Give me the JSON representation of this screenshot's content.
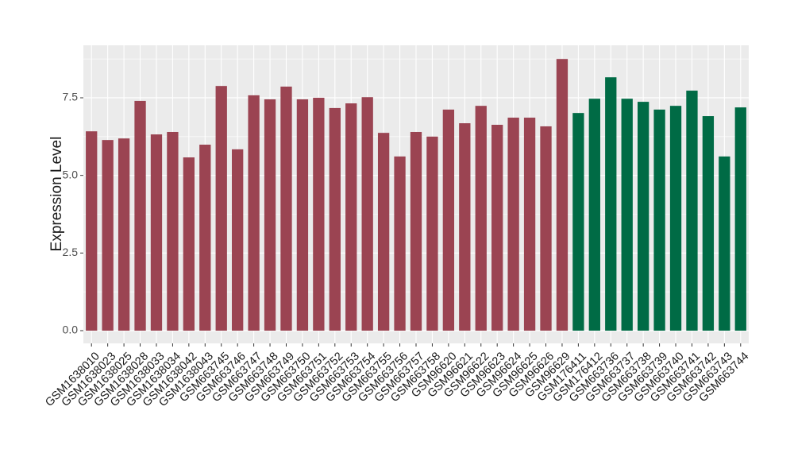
{
  "chart_data": {
    "type": "bar",
    "y_label": "Expression Level",
    "categories": [
      "GSM1638010",
      "GSM1638023",
      "GSM1638025",
      "GSM1638028",
      "GSM1638033",
      "GSM1638034",
      "GSM1638042",
      "GSM1638043",
      "GSM663745",
      "GSM663746",
      "GSM663747",
      "GSM663748",
      "GSM663749",
      "GSM663750",
      "GSM663751",
      "GSM663752",
      "GSM663753",
      "GSM663754",
      "GSM663755",
      "GSM663756",
      "GSM663757",
      "GSM663758",
      "GSM96620",
      "GSM96621",
      "GSM96622",
      "GSM96623",
      "GSM96624",
      "GSM96625",
      "GSM96626",
      "GSM96629",
      "GSM176411",
      "GSM176412",
      "GSM663736",
      "GSM663737",
      "GSM663738",
      "GSM663739",
      "GSM663740",
      "GSM663741",
      "GSM663742",
      "GSM663743",
      "GSM663744"
    ],
    "values": [
      6.42,
      6.14,
      6.19,
      7.4,
      6.32,
      6.4,
      5.58,
      5.99,
      7.88,
      5.84,
      7.58,
      7.45,
      7.86,
      7.45,
      7.5,
      7.17,
      7.32,
      7.52,
      6.37,
      5.61,
      6.4,
      6.25,
      7.12,
      6.68,
      7.24,
      6.63,
      6.86,
      6.86,
      6.58,
      8.75,
      7.01,
      7.47,
      8.16,
      7.47,
      7.37,
      7.12,
      7.24,
      7.73,
      6.91,
      5.61,
      7.19
    ],
    "colors": [
      "#9b4452",
      "#9b4452",
      "#9b4452",
      "#9b4452",
      "#9b4452",
      "#9b4452",
      "#9b4452",
      "#9b4452",
      "#9b4452",
      "#9b4452",
      "#9b4452",
      "#9b4452",
      "#9b4452",
      "#9b4452",
      "#9b4452",
      "#9b4452",
      "#9b4452",
      "#9b4452",
      "#9b4452",
      "#9b4452",
      "#9b4452",
      "#9b4452",
      "#9b4452",
      "#9b4452",
      "#9b4452",
      "#9b4452",
      "#9b4452",
      "#9b4452",
      "#9b4452",
      "#9b4452",
      "#006b45",
      "#006b45",
      "#006b45",
      "#006b45",
      "#006b45",
      "#006b45",
      "#006b45",
      "#006b45",
      "#006b45",
      "#006b45",
      "#006b45"
    ],
    "ylim": [
      -0.41,
      9.19
    ],
    "yticks": [
      {
        "value": 0,
        "label": "0.0"
      },
      {
        "value": 2.5,
        "label": "2.5"
      },
      {
        "value": 5,
        "label": "5.0"
      },
      {
        "value": 7.5,
        "label": "7.5"
      }
    ],
    "grid": true
  }
}
